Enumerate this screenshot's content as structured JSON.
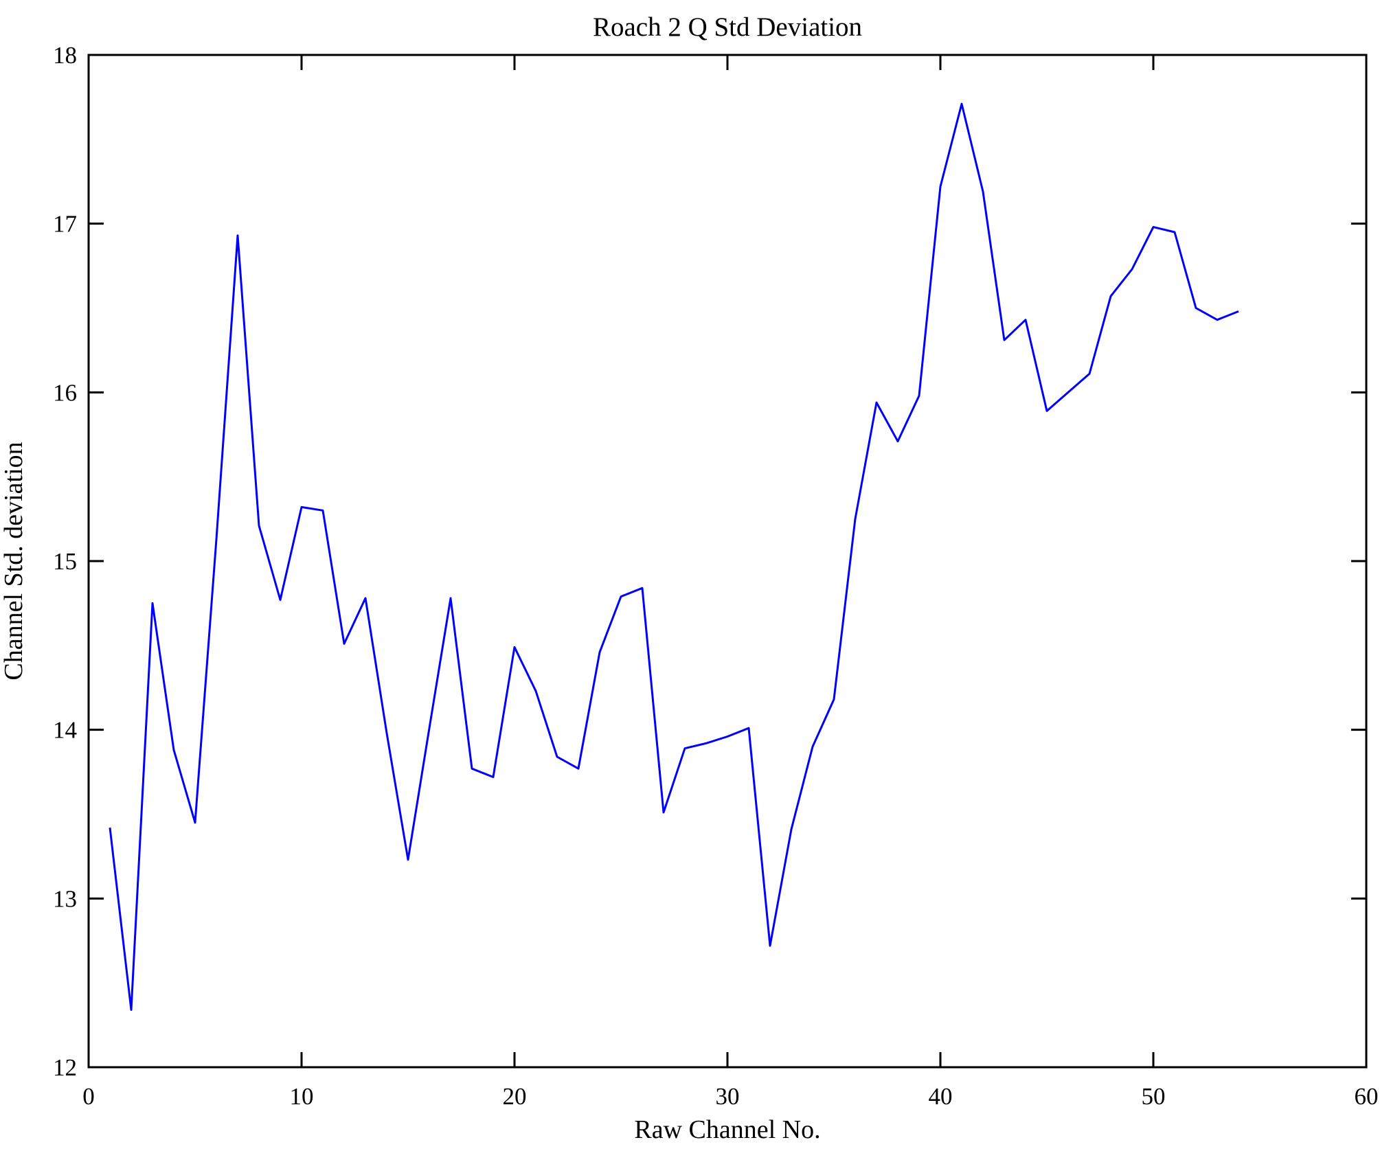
{
  "chart_data": {
    "type": "line",
    "title": "Roach 2 Q Std Deviation",
    "xlabel": "Raw Channel No.",
    "ylabel": "Channel Std. deviation",
    "xlim": [
      0,
      60
    ],
    "ylim": [
      12,
      18
    ],
    "xticks": [
      0,
      10,
      20,
      30,
      40,
      50,
      60
    ],
    "yticks": [
      12,
      13,
      14,
      15,
      16,
      17,
      18
    ],
    "grid": false,
    "legend_position": "none",
    "line_color": "#0000FF",
    "axis_color": "#000000",
    "background_color": "#FFFFFF",
    "series": [
      {
        "name": "channel-std-deviation",
        "x": [
          1,
          2,
          3,
          4,
          5,
          6,
          7,
          8,
          9,
          10,
          11,
          12,
          13,
          14,
          15,
          16,
          17,
          18,
          19,
          20,
          21,
          22,
          23,
          24,
          25,
          26,
          27,
          28,
          29,
          30,
          31,
          32,
          33,
          34,
          35,
          36,
          37,
          38,
          39,
          40,
          41,
          42,
          43,
          44,
          45,
          46,
          47,
          48,
          49,
          50,
          51,
          52,
          53,
          54
        ],
        "y": [
          13.42,
          12.34,
          14.75,
          13.88,
          13.45,
          15.13,
          16.93,
          15.21,
          14.77,
          15.32,
          15.3,
          14.51,
          14.78,
          13.98,
          13.23,
          14.01,
          14.78,
          13.77,
          13.72,
          14.49,
          14.23,
          13.84,
          13.77,
          14.46,
          14.79,
          14.84,
          13.51,
          13.89,
          13.92,
          13.96,
          14.01,
          12.72,
          13.41,
          13.9,
          14.18,
          15.25,
          15.94,
          15.71,
          15.98,
          17.22,
          17.71,
          17.19,
          16.31,
          16.43,
          15.89,
          16.0,
          16.11,
          16.57,
          16.73,
          16.98,
          16.95,
          16.5,
          16.43,
          16.48
        ]
      }
    ]
  }
}
